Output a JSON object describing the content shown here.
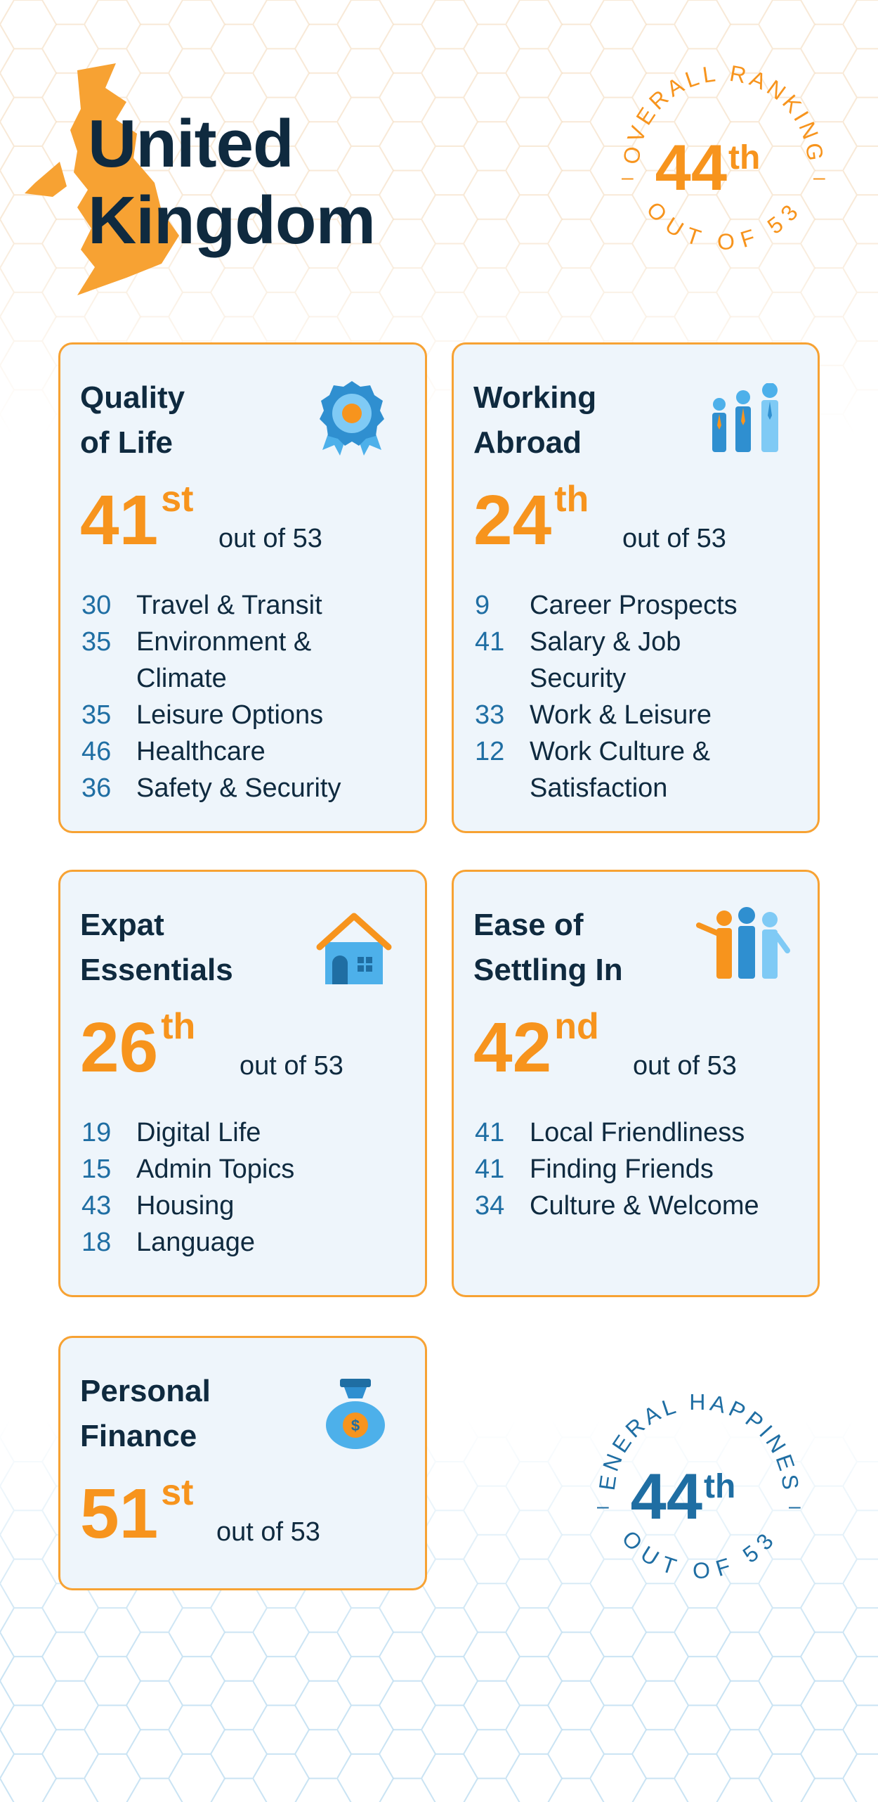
{
  "country": {
    "title_line1": "United",
    "title_line2": "Kingdom"
  },
  "overall": {
    "arc_top": "OVERALL RANKING",
    "rank": "44",
    "suffix": "th",
    "arc_bottom": "OUT OF 53"
  },
  "happiness": {
    "arc_top": "GENERAL HAPPINESS",
    "rank": "44",
    "suffix": "th",
    "arc_bottom": "OUT OF 53"
  },
  "cards": [
    {
      "title_line1": "Quality",
      "title_line2": "of Life",
      "icon": "award-ribbon-icon",
      "rank": "41",
      "suffix": "st",
      "out_of": "out of 53",
      "items": [
        {
          "num": "30",
          "label_line1": "Travel & Transit",
          "label_line2": ""
        },
        {
          "num": "35",
          "label_line1": "Environment &",
          "label_line2": "Climate"
        },
        {
          "num": "35",
          "label_line1": "Leisure Options",
          "label_line2": ""
        },
        {
          "num": "46",
          "label_line1": "Healthcare",
          "label_line2": ""
        },
        {
          "num": "36",
          "label_line1": "Safety & Security",
          "label_line2": ""
        }
      ]
    },
    {
      "title_line1": "Working",
      "title_line2": "Abroad",
      "icon": "business-people-icon",
      "rank": "24",
      "suffix": "th",
      "out_of": "out of 53",
      "items": [
        {
          "num": "9",
          "label_line1": "Career Prospects",
          "label_line2": ""
        },
        {
          "num": "41",
          "label_line1": "Salary & Job",
          "label_line2": "Security"
        },
        {
          "num": "33",
          "label_line1": "Work & Leisure",
          "label_line2": ""
        },
        {
          "num": "12",
          "label_line1": "Work Culture &",
          "label_line2": "Satisfaction"
        }
      ]
    },
    {
      "title_line1": "Expat",
      "title_line2": "Essentials",
      "icon": "house-icon",
      "rank": "26",
      "suffix": "th",
      "out_of": "out of 53",
      "items": [
        {
          "num": "19",
          "label_line1": "Digital Life",
          "label_line2": ""
        },
        {
          "num": "15",
          "label_line1": "Admin Topics",
          "label_line2": ""
        },
        {
          "num": "43",
          "label_line1": "Housing",
          "label_line2": ""
        },
        {
          "num": "18",
          "label_line1": "Language",
          "label_line2": ""
        }
      ]
    },
    {
      "title_line1": "Ease of",
      "title_line2": "Settling In",
      "icon": "welcome-people-icon",
      "rank": "42",
      "suffix": "nd",
      "out_of": "out of 53",
      "items": [
        {
          "num": "41",
          "label_line1": "Local Friendliness",
          "label_line2": ""
        },
        {
          "num": "41",
          "label_line1": "Finding Friends",
          "label_line2": ""
        },
        {
          "num": "34",
          "label_line1": "Culture & Welcome",
          "label_line2": ""
        }
      ]
    },
    {
      "title_line1": "Personal",
      "title_line2": "Finance",
      "icon": "money-bag-icon",
      "rank": "51",
      "suffix": "st",
      "out_of": "out of 53",
      "items": []
    }
  ],
  "colors": {
    "accent_orange": "#f7941d",
    "navy": "#0f2a3f",
    "blue": "#1f6ea3",
    "card_bg": "#eef5fb"
  }
}
